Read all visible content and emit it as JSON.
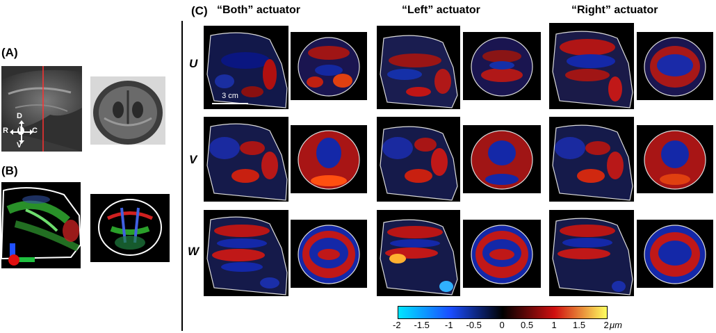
{
  "labels": {
    "a": "(A)",
    "b": "(B)",
    "c": "(C)"
  },
  "headers": [
    "“Both” actuator",
    "“Left” actuator",
    "“Right” actuator"
  ],
  "rows": [
    "U",
    "V",
    "W"
  ],
  "orientation": {
    "d": "D",
    "v": "V",
    "r": "R",
    "c": "C",
    "l": "L"
  },
  "scalebar": "3 cm",
  "colorbar": {
    "ticks": [
      "-2",
      "-1.5",
      "-1",
      "-0.5",
      "0",
      "0.5",
      "1",
      "1.5",
      "2"
    ],
    "unit": "μm",
    "min": -2,
    "max": 2,
    "colors": [
      "#00e5ff",
      "#1a4dff",
      "#000000",
      "#d01010",
      "#ffff60"
    ]
  }
}
